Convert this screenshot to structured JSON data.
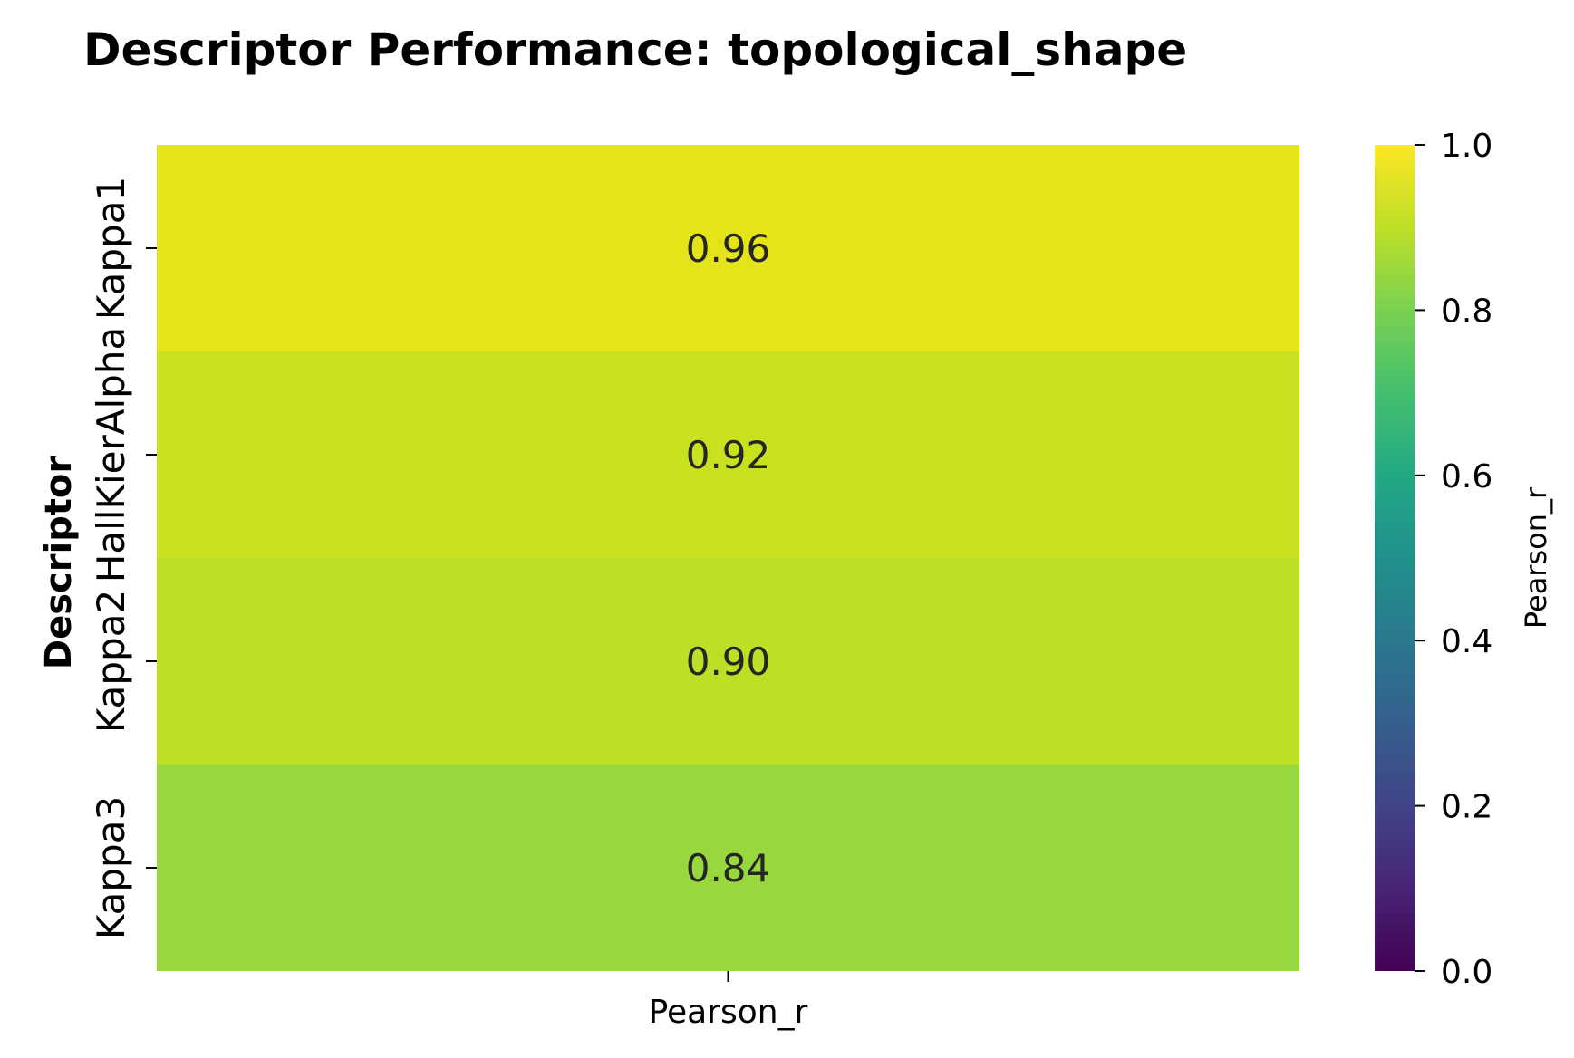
{
  "chart_data": {
    "type": "heatmap",
    "title": "Descriptor Performance: topological_shape",
    "ylabel": "Descriptor",
    "columns": [
      "Pearson_r"
    ],
    "rows": [
      "Kappa1",
      "HallKierAlpha",
      "Kappa2",
      "Kappa3"
    ],
    "values": [
      [
        0.96
      ],
      [
        0.92
      ],
      [
        0.9
      ],
      [
        0.84
      ]
    ],
    "value_labels": [
      "0.96",
      "0.92",
      "0.90",
      "0.84"
    ],
    "colormap": "viridis",
    "colorbar": {
      "label": "Pearson_r",
      "range": [
        0.0,
        1.0
      ],
      "ticks": [
        "0.0",
        "0.2",
        "0.4",
        "0.6",
        "0.8",
        "1.0"
      ]
    },
    "cell_colors": [
      "#e5e419",
      "#cae11f",
      "#bddf26",
      "#98d83e"
    ]
  }
}
